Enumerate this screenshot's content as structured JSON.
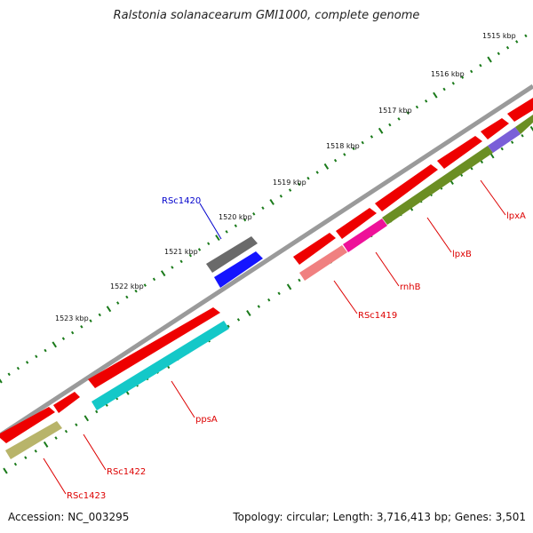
{
  "header": {
    "title": "Ralstonia solanacearum GMI1000, complete genome"
  },
  "footer": {
    "accession": "Accession: NC_003295",
    "summary": "Topology: circular; Length: 3,716,413 bp; Genes: 3,501"
  },
  "ruler": {
    "labels": [
      "1515 kbp",
      "1516 kbp",
      "1517 kbp",
      "1518 kbp",
      "1519 kbp",
      "1520 kbp",
      "1521 kbp",
      "1522 kbp",
      "1523 kbp"
    ],
    "tick_color": "#1a7a1a"
  },
  "colors": {
    "backbone": "#9a9a9a",
    "forward_cds": "#ee0000",
    "label_red": "#dd0000",
    "label_blue": "#0000cc"
  },
  "genes": [
    {
      "label": "lpxA",
      "color": "#7a5fd8"
    },
    {
      "label": "lpxB",
      "color": "#6b8e23"
    },
    {
      "label": "rnhB",
      "color": "#ee1199"
    },
    {
      "label": "RSc1419",
      "color": "#f08080"
    },
    {
      "label": "RSc1420",
      "color": "#1414ff"
    },
    {
      "label": "ppsA",
      "color": "#14c8c8"
    },
    {
      "label": "RSc1422",
      "color": "#ee0000"
    },
    {
      "label": "RSc1423",
      "color": "#b8b46a"
    }
  ]
}
